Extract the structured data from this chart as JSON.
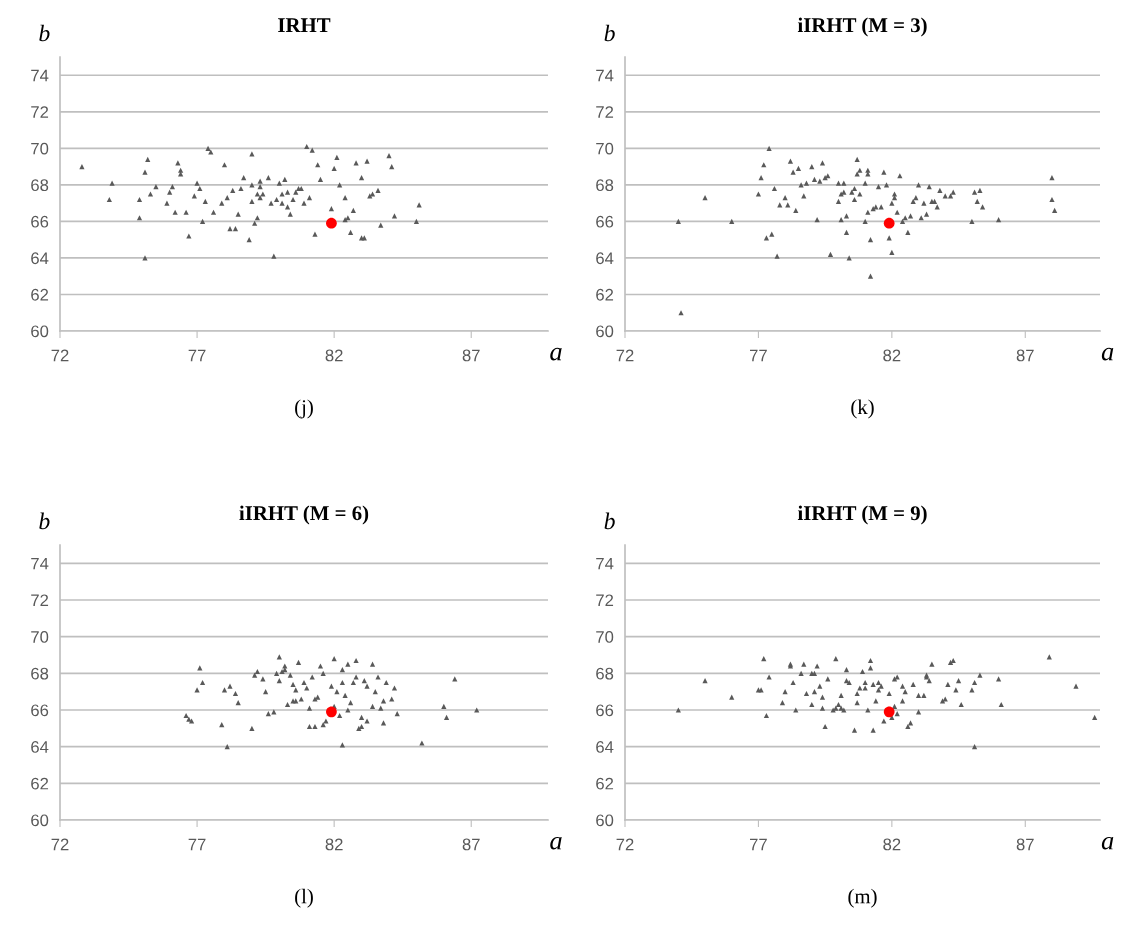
{
  "chart_data": [
    {
      "type": "scatter",
      "title": "IRHT",
      "xlabel": "a",
      "ylabel": "b",
      "annotations": [
        "(j)"
      ],
      "xlim": [
        72,
        89.8
      ],
      "xticks": [
        72,
        77,
        82,
        87
      ],
      "ylim": [
        60,
        75
      ],
      "yticks": [
        60,
        62,
        64,
        66,
        68,
        70,
        72,
        74
      ],
      "grid": "y",
      "series": [
        {
          "color": "#595959",
          "marker": "triangle",
          "x": [
            72.8,
            73.9,
            73.8,
            75.2,
            75.1,
            74.9,
            74.9,
            75.5,
            75.3,
            75.1,
            76.3,
            76.4,
            76.4,
            76.1,
            76.0,
            75.9,
            76.2,
            76.6,
            76.7,
            77.0,
            77.1,
            76.9,
            77.3,
            77.2,
            77.4,
            77.5,
            77.6,
            77.9,
            78.0,
            78.1,
            78.3,
            78.2,
            78.4,
            78.5,
            78.6,
            78.7,
            79.0,
            79.0,
            79.0,
            79.2,
            79.3,
            79.3,
            79.3,
            79.4,
            79.6,
            79.7,
            79.1,
            79.2,
            78.9,
            79.8,
            80.0,
            79.9,
            80.1,
            80.1,
            80.2,
            80.3,
            80.3,
            80.4,
            80.5,
            80.6,
            80.7,
            80.8,
            80.9,
            81.1,
            81.0,
            81.2,
            81.4,
            81.5,
            81.3,
            81.9,
            82.0,
            82.1,
            82.2,
            82.4,
            82.4,
            82.5,
            82.7,
            82.6,
            82.8,
            83.0,
            83.0,
            83.1,
            83.2,
            83.3,
            83.4,
            83.6,
            83.7,
            84.0,
            84.1,
            84.2,
            85.0,
            85.1
          ],
          "values": [
            69.0,
            68.1,
            67.2,
            69.4,
            68.7,
            66.2,
            67.2,
            67.9,
            67.5,
            64.0,
            69.2,
            68.8,
            68.6,
            67.9,
            67.6,
            67.0,
            66.5,
            66.5,
            65.2,
            68.1,
            67.8,
            67.4,
            67.1,
            66.0,
            70.0,
            69.8,
            66.5,
            67.0,
            69.1,
            67.3,
            67.7,
            65.6,
            65.6,
            66.4,
            67.8,
            68.4,
            67.1,
            68.0,
            69.7,
            67.5,
            68.2,
            67.9,
            67.3,
            67.5,
            68.4,
            67.0,
            65.9,
            66.2,
            65.0,
            64.1,
            68.1,
            67.2,
            67.5,
            67.0,
            68.3,
            67.6,
            66.8,
            66.4,
            67.2,
            67.6,
            67.8,
            67.8,
            67.0,
            67.3,
            70.1,
            69.9,
            69.1,
            68.3,
            65.3,
            66.7,
            68.9,
            69.5,
            68.0,
            67.3,
            66.1,
            66.2,
            66.6,
            65.4,
            69.2,
            68.4,
            65.1,
            65.1,
            69.3,
            67.4,
            67.5,
            67.7,
            65.8,
            69.6,
            69.0,
            66.3,
            66.0,
            66.9
          ]
        },
        {
          "color": "#ff0000",
          "marker": "circle",
          "x": [
            81.9
          ],
          "values": [
            65.9
          ]
        }
      ]
    },
    {
      "type": "scatter",
      "title": "iIRHT (M = 3)",
      "xlabel": "a",
      "ylabel": "b",
      "annotations": [
        "(k)"
      ],
      "xlim": [
        72,
        89.8
      ],
      "xticks": [
        72,
        77,
        82,
        87
      ],
      "ylim": [
        60,
        75
      ],
      "yticks": [
        60,
        62,
        64,
        66,
        68,
        70,
        72,
        74
      ],
      "grid": "y",
      "series": [
        {
          "color": "#595959",
          "marker": "triangle",
          "x": [
            74.0,
            74.1,
            75.0,
            76.0,
            77.0,
            77.1,
            77.2,
            77.4,
            77.3,
            77.5,
            77.6,
            77.7,
            77.8,
            78.0,
            78.1,
            78.2,
            78.3,
            78.5,
            78.4,
            78.6,
            78.7,
            78.8,
            79.0,
            79.1,
            79.2,
            79.3,
            79.4,
            79.5,
            79.6,
            79.7,
            80.0,
            80.1,
            80.0,
            80.2,
            80.1,
            80.2,
            80.3,
            80.3,
            80.4,
            80.5,
            80.6,
            80.6,
            80.7,
            80.7,
            80.8,
            80.8,
            81.0,
            81.0,
            81.1,
            81.1,
            81.1,
            81.2,
            81.2,
            81.3,
            81.4,
            81.5,
            81.6,
            81.7,
            81.8,
            81.9,
            82.0,
            82.0,
            82.1,
            82.1,
            82.2,
            82.3,
            82.4,
            82.5,
            82.6,
            82.7,
            82.8,
            82.9,
            83.0,
            83.1,
            83.2,
            83.3,
            83.4,
            83.5,
            83.6,
            83.7,
            83.8,
            84.0,
            84.2,
            84.3,
            85.0,
            85.1,
            85.2,
            85.3,
            85.4,
            86.0,
            88.0,
            88.0,
            88.1
          ],
          "values": [
            66.0,
            61.0,
            67.3,
            66.0,
            67.5,
            68.4,
            69.1,
            70.0,
            65.1,
            65.3,
            67.8,
            64.1,
            66.9,
            67.3,
            66.9,
            69.3,
            68.7,
            68.9,
            66.6,
            68.0,
            67.4,
            68.1,
            69.0,
            68.3,
            66.1,
            68.2,
            69.2,
            68.4,
            68.5,
            64.2,
            68.1,
            66.1,
            67.1,
            68.1,
            67.5,
            67.6,
            65.4,
            66.3,
            64.0,
            67.6,
            67.2,
            67.8,
            69.4,
            68.6,
            67.5,
            68.8,
            66.0,
            68.1,
            68.6,
            68.8,
            66.5,
            65.0,
            63.0,
            66.7,
            66.8,
            67.9,
            66.8,
            68.7,
            68.0,
            65.1,
            64.3,
            67.0,
            67.5,
            67.3,
            66.5,
            68.5,
            66.0,
            66.2,
            65.4,
            66.3,
            67.1,
            67.3,
            68.0,
            66.2,
            67.0,
            66.4,
            67.9,
            67.1,
            67.1,
            66.8,
            67.7,
            67.4,
            67.4,
            67.6,
            66.0,
            67.6,
            67.1,
            67.7,
            66.8,
            66.1,
            68.4,
            67.2,
            66.6
          ]
        },
        {
          "color": "#ff0000",
          "marker": "circle",
          "x": [
            81.9
          ],
          "values": [
            65.9
          ]
        }
      ]
    },
    {
      "type": "scatter",
      "title": "iIRHT (M = 6)",
      "xlabel": "a",
      "ylabel": "b",
      "annotations": [
        "(l)"
      ],
      "xlim": [
        72,
        89.8
      ],
      "xticks": [
        72,
        77,
        82,
        87
      ],
      "ylim": [
        60,
        75
      ],
      "yticks": [
        60,
        62,
        64,
        66,
        68,
        70,
        72,
        74
      ],
      "grid": "y",
      "series": [
        {
          "color": "#595959",
          "marker": "triangle",
          "x": [
            76.6,
            76.7,
            76.8,
            77.1,
            77.2,
            77.0,
            77.9,
            78.0,
            78.2,
            78.4,
            78.5,
            78.1,
            79.0,
            79.1,
            79.2,
            79.4,
            79.5,
            79.6,
            79.8,
            80.0,
            79.9,
            80.1,
            80.2,
            80.2,
            80.0,
            80.4,
            80.3,
            80.5,
            80.6,
            80.5,
            80.6,
            80.7,
            80.8,
            80.9,
            81.0,
            81.1,
            81.1,
            81.3,
            81.2,
            81.3,
            81.4,
            81.5,
            81.6,
            81.6,
            81.7,
            81.9,
            82.0,
            82.0,
            82.2,
            82.1,
            82.3,
            82.3,
            82.4,
            82.5,
            82.5,
            82.3,
            82.6,
            82.7,
            82.8,
            82.8,
            83.0,
            82.9,
            83.0,
            83.1,
            83.2,
            83.2,
            83.4,
            83.4,
            83.5,
            83.6,
            83.7,
            83.8,
            83.8,
            83.9,
            84.1,
            84.2,
            84.3,
            85.2,
            86.0,
            86.1,
            86.4,
            87.2
          ],
          "values": [
            65.7,
            65.5,
            65.4,
            68.3,
            67.5,
            67.1,
            65.2,
            67.1,
            67.3,
            66.9,
            66.4,
            64.0,
            65.0,
            67.9,
            68.1,
            67.7,
            67.0,
            65.8,
            65.9,
            68.9,
            68.0,
            68.1,
            68.4,
            68.2,
            67.6,
            67.9,
            66.3,
            66.5,
            66.5,
            67.4,
            67.1,
            68.6,
            66.6,
            67.5,
            67.2,
            66.1,
            65.1,
            65.1,
            67.8,
            66.6,
            66.7,
            68.4,
            68.0,
            65.2,
            65.4,
            67.3,
            68.8,
            66.2,
            65.7,
            67.0,
            68.2,
            67.5,
            66.8,
            68.5,
            66.0,
            64.1,
            66.4,
            67.5,
            67.8,
            68.7,
            65.6,
            65.0,
            65.1,
            67.6,
            67.3,
            65.4,
            68.5,
            66.2,
            67.0,
            67.8,
            66.1,
            65.3,
            66.5,
            67.5,
            66.6,
            67.2,
            65.8,
            64.2,
            66.2,
            65.6,
            67.7,
            66.0
          ]
        },
        {
          "color": "#ff0000",
          "marker": "circle",
          "x": [
            81.9
          ],
          "values": [
            65.9
          ]
        }
      ]
    },
    {
      "type": "scatter",
      "title": "iIRHT (M = 9)",
      "xlabel": "a",
      "ylabel": "b",
      "annotations": [
        "(m)"
      ],
      "xlim": [
        72,
        89.8
      ],
      "xticks": [
        72,
        77,
        82,
        87
      ],
      "ylim": [
        60,
        75
      ],
      "yticks": [
        60,
        62,
        64,
        66,
        68,
        70,
        72,
        74
      ],
      "grid": "y",
      "series": [
        {
          "color": "#595959",
          "marker": "triangle",
          "x": [
            74.0,
            75.0,
            76.0,
            77.0,
            77.1,
            77.2,
            77.3,
            77.4,
            77.9,
            78.0,
            78.2,
            78.2,
            78.3,
            78.4,
            78.6,
            78.7,
            78.8,
            79.0,
            79.0,
            79.1,
            79.1,
            79.2,
            79.3,
            79.4,
            79.4,
            79.5,
            79.6,
            79.8,
            79.9,
            79.9,
            80.0,
            80.1,
            80.1,
            80.2,
            80.3,
            80.3,
            80.4,
            80.6,
            80.7,
            80.7,
            80.8,
            80.9,
            81.0,
            81.0,
            81.1,
            81.2,
            81.2,
            81.3,
            81.3,
            81.4,
            81.5,
            81.5,
            81.6,
            81.7,
            81.9,
            82.0,
            82.1,
            82.1,
            82.2,
            82.2,
            82.4,
            82.4,
            82.5,
            82.6,
            82.7,
            82.8,
            83.0,
            83.0,
            83.2,
            83.3,
            83.3,
            83.4,
            83.5,
            83.9,
            84.0,
            84.1,
            84.2,
            84.3,
            84.4,
            84.5,
            84.6,
            85.0,
            85.1,
            85.1,
            85.3,
            86.0,
            86.1,
            87.9,
            88.9,
            89.6
          ],
          "values": [
            66.0,
            67.6,
            66.7,
            67.1,
            67.1,
            68.8,
            65.7,
            67.8,
            66.4,
            67.0,
            68.4,
            68.5,
            67.5,
            66.0,
            68.0,
            68.5,
            66.9,
            68.0,
            66.3,
            67.0,
            68.0,
            68.4,
            67.3,
            66.1,
            66.7,
            65.1,
            67.7,
            66.0,
            68.8,
            66.1,
            66.3,
            66.1,
            66.8,
            66.0,
            67.6,
            68.2,
            67.5,
            64.9,
            66.4,
            66.9,
            67.2,
            68.1,
            67.5,
            67.2,
            66.0,
            68.3,
            68.7,
            64.9,
            67.4,
            66.5,
            67.1,
            67.5,
            67.3,
            65.4,
            66.9,
            65.6,
            67.7,
            66.2,
            65.8,
            67.8,
            67.3,
            66.5,
            67.0,
            65.1,
            65.3,
            67.4,
            65.9,
            66.8,
            66.8,
            67.8,
            67.9,
            67.6,
            68.5,
            66.5,
            66.6,
            67.4,
            68.6,
            68.7,
            67.1,
            67.6,
            66.3,
            67.1,
            67.5,
            64.0,
            67.9,
            67.7,
            66.3,
            68.9,
            67.3,
            65.6
          ]
        },
        {
          "color": "#ff0000",
          "marker": "circle",
          "x": [
            81.9
          ],
          "values": [
            65.9
          ]
        }
      ]
    }
  ]
}
